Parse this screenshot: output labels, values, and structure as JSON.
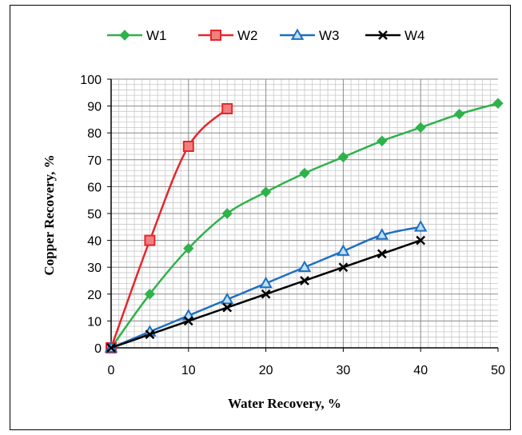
{
  "chart_data": {
    "type": "line",
    "xlabel": "Water Recovery, %",
    "ylabel": "Copper Recovery, %",
    "xlim": [
      0,
      50
    ],
    "ylim": [
      0,
      100
    ],
    "x_ticks": [
      "0",
      "10",
      "20",
      "30",
      "40",
      "50"
    ],
    "y_ticks": [
      "0",
      "10",
      "20",
      "30",
      "40",
      "50",
      "60",
      "70",
      "80",
      "90",
      "100"
    ],
    "grid": true,
    "legend_position": "top",
    "series": [
      {
        "name": "W1",
        "color": "#2EB24A",
        "marker": "diamond",
        "x": [
          0,
          5,
          10,
          15,
          20,
          25,
          30,
          35,
          40,
          45,
          50
        ],
        "y": [
          0,
          20,
          37,
          50,
          58,
          65,
          71,
          77,
          82,
          87,
          91
        ]
      },
      {
        "name": "W2",
        "color": "#E8262B",
        "marker": "square",
        "x": [
          0,
          5,
          10,
          15
        ],
        "y": [
          0,
          40,
          75,
          89
        ]
      },
      {
        "name": "W3",
        "color": "#1E6FC0",
        "marker": "triangle",
        "x": [
          0,
          5,
          10,
          15,
          20,
          25,
          30,
          35,
          40
        ],
        "y": [
          0,
          6,
          12,
          18,
          24,
          30,
          36,
          42,
          45
        ]
      },
      {
        "name": "W4",
        "color": "#000000",
        "marker": "x",
        "x": [
          0,
          5,
          10,
          15,
          20,
          25,
          30,
          35,
          40
        ],
        "y": [
          0,
          5,
          10,
          15,
          20,
          25,
          30,
          35,
          40
        ]
      }
    ]
  }
}
